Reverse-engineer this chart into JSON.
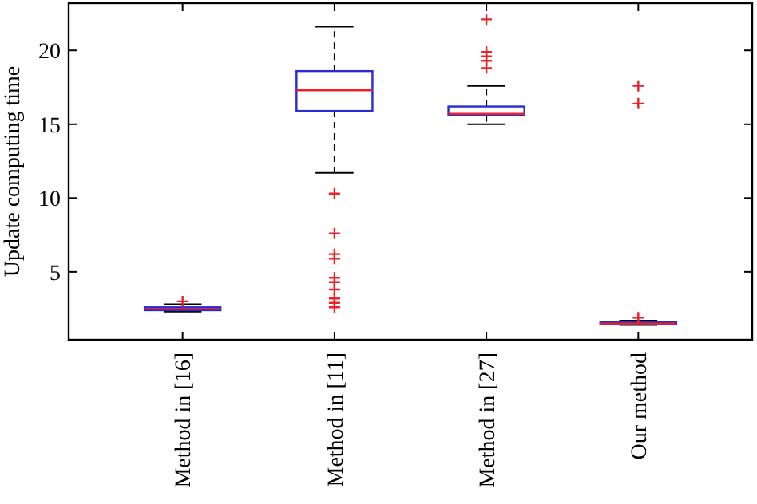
{
  "chart_data": {
    "type": "box",
    "ylabel": "Update computing time",
    "categories": [
      "Method in [16]",
      "Method in [11]",
      "Method in [27]",
      "Our method"
    ],
    "ylim": [
      0.4,
      23.2
    ],
    "yticks": [
      5,
      10,
      15,
      20
    ],
    "grid": false,
    "marker": "cross",
    "boxes": [
      {
        "low": 2.3,
        "q1": 2.4,
        "median": 2.5,
        "q3": 2.6,
        "high": 2.8,
        "outliers": [
          3.0
        ]
      },
      {
        "low": 11.7,
        "q1": 15.9,
        "median": 17.3,
        "q3": 18.6,
        "high": 21.6,
        "outliers": [
          10.3,
          7.6,
          6.2,
          5.9,
          4.6,
          4.3,
          3.8,
          3.2,
          2.9,
          2.6
        ]
      },
      {
        "low": 15.0,
        "q1": 15.6,
        "median": 15.7,
        "q3": 16.2,
        "high": 17.6,
        "outliers": [
          18.8,
          19.3,
          19.6,
          19.9,
          22.1
        ]
      },
      {
        "low": 1.4,
        "q1": 1.45,
        "median": 1.5,
        "q3": 1.6,
        "high": 1.7,
        "outliers": [
          1.9,
          16.4,
          17.6
        ]
      }
    ]
  }
}
